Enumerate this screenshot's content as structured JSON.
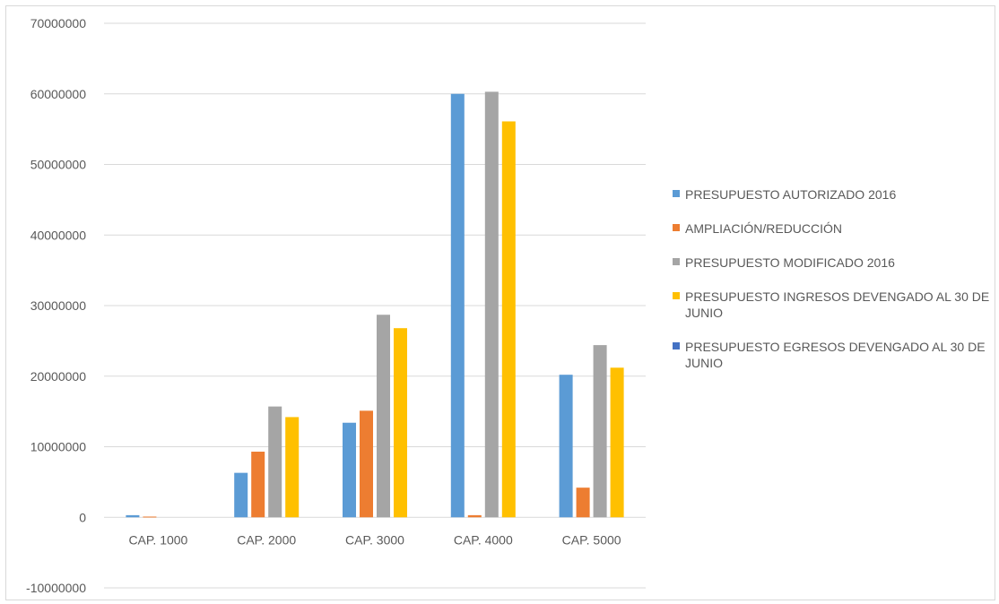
{
  "chart_data": {
    "type": "bar",
    "categories": [
      "CAP. 1000",
      "CAP. 2000",
      "CAP. 3000",
      "CAP. 4000",
      "CAP. 5000"
    ],
    "series": [
      {
        "name": "PRESUPUESTO AUTORIZADO 2016",
        "color": "#5b9bd5",
        "values": [
          300000,
          6300000,
          13400000,
          60000000,
          20200000
        ]
      },
      {
        "name": "AMPLIACIÓN/REDUCCIÓN",
        "color": "#ed7d31",
        "values": [
          100000,
          9300000,
          15100000,
          300000,
          4200000
        ]
      },
      {
        "name": "PRESUPUESTO MODIFICADO 2016",
        "color": "#a5a5a5",
        "values": [
          0,
          15700000,
          28700000,
          60300000,
          24400000
        ]
      },
      {
        "name": "PRESUPUESTO INGRESOS DEVENGADO AL 30 DE JUNIO",
        "color": "#ffc000",
        "values": [
          0,
          14200000,
          26800000,
          56100000,
          21200000
        ]
      },
      {
        "name": "PRESUPUESTO EGRESOS DEVENGADO AL 30 DE JUNIO",
        "color": "#4472c4",
        "values": [
          0,
          0,
          0,
          0,
          0
        ]
      }
    ],
    "ylim": [
      -10000000,
      70000000
    ],
    "yticks": [
      -10000000,
      0,
      10000000,
      20000000,
      30000000,
      40000000,
      50000000,
      60000000,
      70000000
    ],
    "grid": true,
    "legend_position": "right"
  }
}
